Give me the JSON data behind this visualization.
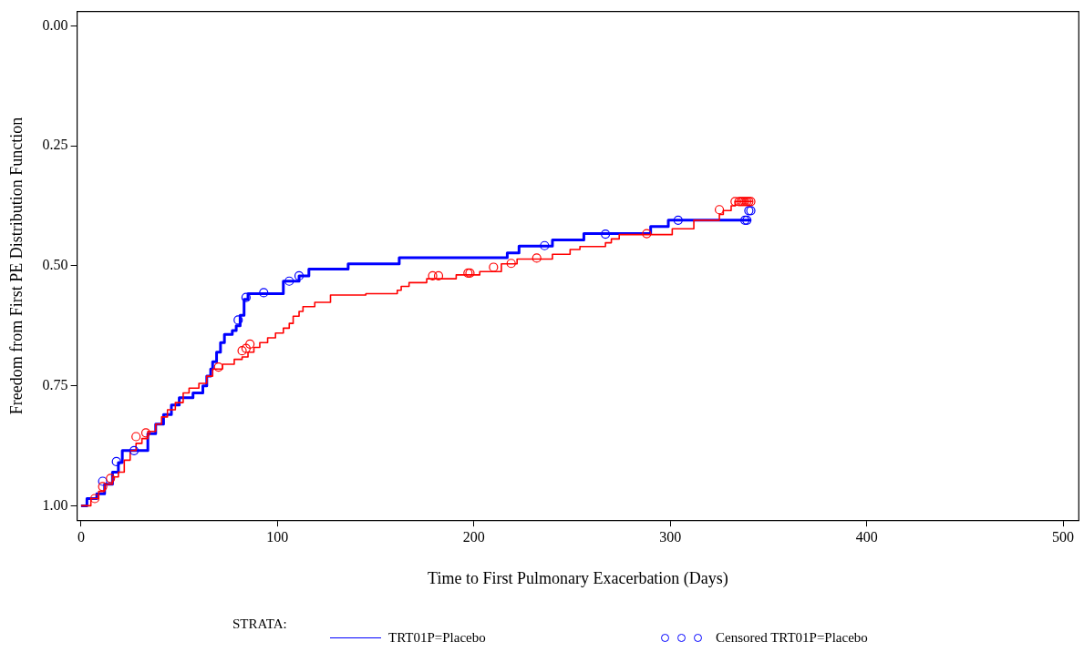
{
  "chart_data": {
    "type": "step",
    "xlabel": "Time to First Pulmonary Exacerbation (Days)",
    "ylabel": "Freedom from First PE Distribution Function",
    "legend_title": "STRATA:",
    "legend": "bottom",
    "grid": false,
    "xlim": [
      -2,
      508
    ],
    "xticks": [
      0,
      100,
      200,
      300,
      400,
      500
    ],
    "ylim": [
      1.03,
      -0.03
    ],
    "yticks": [
      {
        "value": 0,
        "label": "0.00"
      },
      {
        "value": 0.25,
        "label": "0.25"
      },
      {
        "value": 0.5,
        "label": "0.50"
      },
      {
        "value": 0.75,
        "label": "0.75"
      },
      {
        "value": 1,
        "label": "1.00"
      }
    ],
    "series": [
      {
        "type": "step",
        "marker": "none",
        "color": "#ff0000",
        "x": [
          0,
          5,
          9,
          12,
          16,
          19,
          22,
          25,
          28,
          31,
          34,
          38,
          41,
          44,
          48,
          52,
          55,
          60,
          64,
          67,
          72,
          78,
          82,
          85,
          88,
          91,
          95,
          99,
          103,
          106,
          108,
          111,
          113,
          119,
          127,
          145,
          161,
          163,
          167,
          176,
          191,
          203,
          214,
          222,
          240,
          249,
          254,
          267,
          270,
          274,
          301,
          312,
          325,
          327,
          331,
          333,
          342
        ],
        "values": [
          1.0,
          0.985,
          0.97,
          0.955,
          0.94,
          0.93,
          0.905,
          0.885,
          0.87,
          0.86,
          0.845,
          0.83,
          0.815,
          0.8,
          0.785,
          0.765,
          0.755,
          0.745,
          0.73,
          0.715,
          0.705,
          0.695,
          0.69,
          0.68,
          0.67,
          0.66,
          0.65,
          0.64,
          0.63,
          0.62,
          0.605,
          0.595,
          0.585,
          0.576,
          0.561,
          0.558,
          0.551,
          0.543,
          0.535,
          0.527,
          0.519,
          0.512,
          0.496,
          0.486,
          0.476,
          0.466,
          0.46,
          0.452,
          0.444,
          0.435,
          0.423,
          0.405,
          0.393,
          0.385,
          0.375,
          0.366,
          0.366
        ]
      },
      {
        "type": "step",
        "marker": "none",
        "name": "TRT01P=Placebo",
        "color": "#0000ff",
        "x": [
          0,
          3,
          8,
          12,
          16,
          19,
          21,
          34,
          38,
          42,
          46,
          50,
          57,
          62,
          64,
          66,
          67,
          69,
          71,
          73,
          77,
          79,
          81,
          83,
          85,
          103,
          111,
          116,
          136,
          162,
          217,
          223,
          240,
          256,
          290,
          299,
          341
        ],
        "values": [
          1.0,
          0.985,
          0.975,
          0.955,
          0.93,
          0.91,
          0.885,
          0.85,
          0.83,
          0.81,
          0.79,
          0.775,
          0.765,
          0.75,
          0.73,
          0.715,
          0.7,
          0.68,
          0.66,
          0.643,
          0.635,
          0.625,
          0.603,
          0.57,
          0.558,
          0.532,
          0.521,
          0.507,
          0.496,
          0.483,
          0.473,
          0.459,
          0.446,
          0.433,
          0.418,
          0.405,
          0.405
        ]
      },
      {
        "type": "scatter",
        "marker": "circle",
        "color": "#ff0000",
        "x": [
          7,
          11,
          15,
          28,
          33,
          70,
          82,
          84,
          86,
          179,
          182,
          197,
          198,
          210,
          219,
          232,
          288,
          325,
          333,
          335,
          336,
          337,
          338,
          339,
          340,
          341
        ],
        "values": [
          0.985,
          0.96,
          0.943,
          0.856,
          0.848,
          0.711,
          0.677,
          0.672,
          0.663,
          0.521,
          0.521,
          0.515,
          0.515,
          0.503,
          0.495,
          0.484,
          0.433,
          0.383,
          0.366,
          0.366,
          0.366,
          0.366,
          0.366,
          0.366,
          0.366,
          0.366
        ]
      },
      {
        "type": "scatter",
        "marker": "circle",
        "name": "Censored TRT01P=Placebo",
        "color": "#0000ff",
        "x": [
          11,
          18,
          27,
          80,
          84,
          93,
          106,
          111,
          236,
          267,
          304,
          338,
          339,
          340,
          341
        ],
        "values": [
          0.949,
          0.908,
          0.885,
          0.613,
          0.566,
          0.556,
          0.532,
          0.521,
          0.458,
          0.434,
          0.405,
          0.405,
          0.405,
          0.385,
          0.385
        ]
      }
    ]
  }
}
